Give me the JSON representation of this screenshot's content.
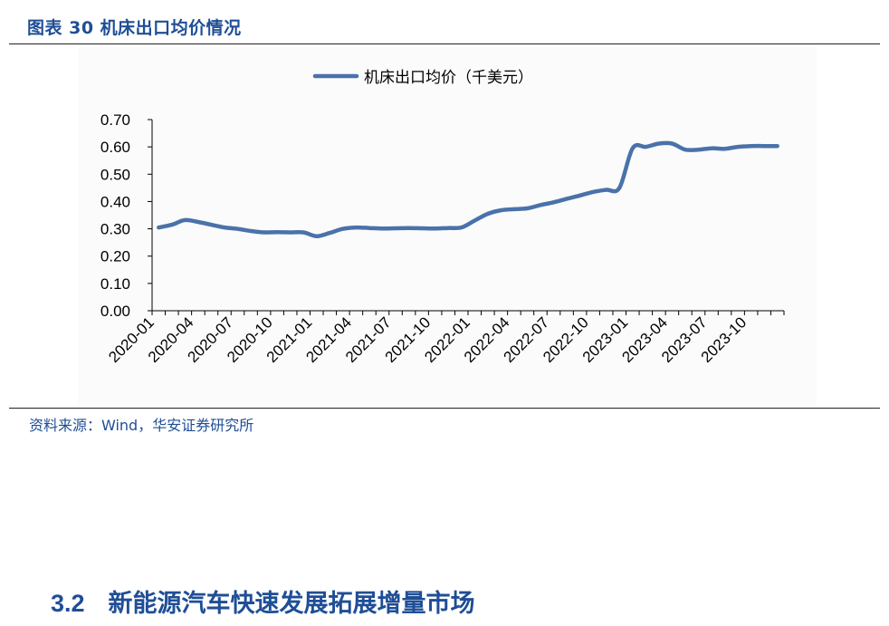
{
  "header": {
    "figure_title": "图表 30 机床出口均价情况"
  },
  "footer": {
    "source": "资料来源：Wind，华安证券研究所"
  },
  "section": {
    "number": "3.2",
    "title": "新能源汽车快速发展拓展增量市场"
  },
  "colors": {
    "accent": "#1f4e96",
    "series": "#4a72aa"
  },
  "chart_data": {
    "type": "line",
    "title": "",
    "xlabel": "",
    "ylabel": "",
    "ylim": [
      0,
      0.7
    ],
    "yticks": [
      "0.00",
      "0.10",
      "0.20",
      "0.30",
      "0.40",
      "0.50",
      "0.60",
      "0.70"
    ],
    "grid": false,
    "legend": "top-center",
    "x": [
      "2020-01",
      "2020-02",
      "2020-03",
      "2020-04",
      "2020-05",
      "2020-06",
      "2020-07",
      "2020-08",
      "2020-09",
      "2020-10",
      "2020-11",
      "2020-12",
      "2021-01",
      "2021-02",
      "2021-03",
      "2021-04",
      "2021-05",
      "2021-06",
      "2021-07",
      "2021-08",
      "2021-09",
      "2021-10",
      "2021-11",
      "2021-12",
      "2022-01",
      "2022-02",
      "2022-03",
      "2022-04",
      "2022-05",
      "2022-06",
      "2022-07",
      "2022-08",
      "2022-09",
      "2022-10",
      "2022-11",
      "2022-12",
      "2023-01",
      "2023-02",
      "2023-03",
      "2023-04",
      "2023-05",
      "2023-06",
      "2023-07",
      "2023-08",
      "2023-09",
      "2023-10",
      "2023-11",
      "2023-12"
    ],
    "xtick_labels": [
      "2020-01",
      "2020-04",
      "2020-07",
      "2020-10",
      "2021-01",
      "2021-04",
      "2021-07",
      "2021-10",
      "2022-01",
      "2022-04",
      "2022-07",
      "2022-10",
      "2023-01",
      "2023-04",
      "2023-07",
      "2023-10"
    ],
    "series": [
      {
        "name": "机床出口均价（千美元）",
        "values": [
          0.305,
          0.315,
          0.332,
          0.325,
          0.315,
          0.305,
          0.3,
          0.292,
          0.287,
          0.288,
          0.287,
          0.287,
          0.273,
          0.285,
          0.3,
          0.305,
          0.303,
          0.301,
          0.302,
          0.303,
          0.302,
          0.301,
          0.303,
          0.305,
          0.33,
          0.355,
          0.368,
          0.372,
          0.375,
          0.387,
          0.397,
          0.41,
          0.422,
          0.435,
          0.443,
          0.45,
          0.595,
          0.6,
          0.612,
          0.612,
          0.59,
          0.59,
          0.595,
          0.593,
          0.6,
          0.603,
          0.603,
          0.603
        ]
      }
    ]
  }
}
